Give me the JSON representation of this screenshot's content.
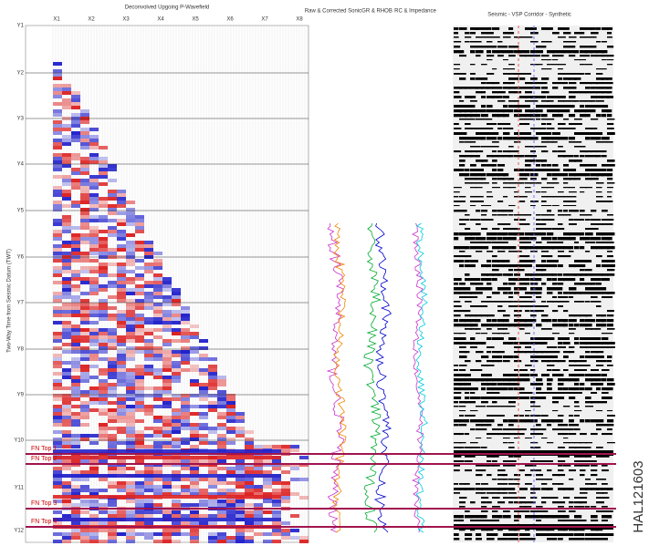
{
  "panels": {
    "wavefield": "Deconvolved Upgoing P-Wavefield",
    "sonic": "Raw & Corrected Sonic",
    "gr": "GR & RHOB",
    "rc": "RC & Impedance",
    "seismic": "Seismic - VSP Corridor - Synthetic"
  },
  "x_labels": [
    "X1",
    "X2",
    "X3",
    "X4",
    "X5",
    "X6",
    "X7",
    "X8"
  ],
  "y_labels": [
    "Y1",
    "Y2",
    "Y3",
    "Y4",
    "Y5",
    "Y6",
    "Y7",
    "Y8",
    "Y9",
    "Y10",
    "Y11",
    "Y12"
  ],
  "y_axis_label": "Two-Way Time from Seismic Datum (TWT)",
  "formations": [
    "FN Top 1",
    "FN Top 2",
    "FN Top 3",
    "FN Top 4"
  ],
  "figure_id": "HAL121603"
}
